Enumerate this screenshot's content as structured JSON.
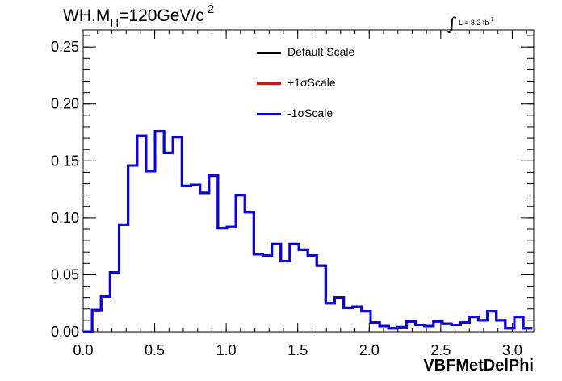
{
  "header": {
    "title_prefix": "WH,M",
    "title_sub": "H",
    "title_value": "=120GeV/c",
    "title_sup": "2",
    "lumi_symbol": "∫",
    "lumi_text": "L = 8.2 fb",
    "lumi_sup": "-1"
  },
  "chart_data": {
    "type": "line",
    "title": "WH,M_H=120GeV/c^2",
    "xlabel": "VBFMetDelPhi",
    "ylabel": "",
    "xlim": [
      0.0,
      3.15
    ],
    "ylim": [
      0.0,
      0.265
    ],
    "xticks": [
      "0.0",
      "0.5",
      "1.0",
      "1.5",
      "2.0",
      "2.5",
      "3.0"
    ],
    "yticks": [
      "0.00",
      "0.05",
      "0.10",
      "0.15",
      "0.20",
      "0.25"
    ],
    "bin_width": 0.0628,
    "x_start": 0.0,
    "legend": [
      "Default Scale",
      "+1σScale",
      "-1σScale"
    ],
    "legend_position": "top-center",
    "series": [
      {
        "name": "Default Scale",
        "color": "#000000",
        "values": [
          0.0,
          0.019,
          0.031,
          0.052,
          0.094,
          0.146,
          0.172,
          0.141,
          0.176,
          0.157,
          0.171,
          0.128,
          0.129,
          0.122,
          0.137,
          0.091,
          0.092,
          0.12,
          0.105,
          0.068,
          0.067,
          0.077,
          0.062,
          0.077,
          0.072,
          0.067,
          0.058,
          0.025,
          0.03,
          0.021,
          0.022,
          0.018,
          0.008,
          0.005,
          0.003,
          0.004,
          0.009,
          0.006,
          0.005,
          0.009,
          0.007,
          0.006,
          0.008,
          0.013,
          0.01,
          0.018,
          0.01,
          0.003,
          0.013,
          0.003
        ]
      },
      {
        "name": "+1σScale",
        "color": "#ff0000",
        "values": [
          0.0,
          0.019,
          0.031,
          0.052,
          0.094,
          0.146,
          0.172,
          0.141,
          0.176,
          0.157,
          0.171,
          0.128,
          0.129,
          0.122,
          0.137,
          0.091,
          0.092,
          0.12,
          0.105,
          0.068,
          0.067,
          0.077,
          0.062,
          0.077,
          0.072,
          0.067,
          0.058,
          0.025,
          0.03,
          0.021,
          0.022,
          0.018,
          0.008,
          0.005,
          0.003,
          0.004,
          0.009,
          0.006,
          0.005,
          0.009,
          0.007,
          0.006,
          0.008,
          0.013,
          0.01,
          0.018,
          0.01,
          0.003,
          0.013,
          0.003
        ]
      },
      {
        "name": "-1σScale",
        "color": "#0000ff",
        "values": [
          0.0,
          0.019,
          0.031,
          0.052,
          0.094,
          0.146,
          0.172,
          0.141,
          0.176,
          0.157,
          0.171,
          0.128,
          0.129,
          0.122,
          0.137,
          0.091,
          0.092,
          0.12,
          0.105,
          0.068,
          0.067,
          0.077,
          0.062,
          0.077,
          0.072,
          0.067,
          0.058,
          0.025,
          0.03,
          0.021,
          0.022,
          0.018,
          0.008,
          0.005,
          0.003,
          0.004,
          0.009,
          0.006,
          0.005,
          0.009,
          0.007,
          0.006,
          0.008,
          0.013,
          0.01,
          0.018,
          0.01,
          0.003,
          0.013,
          0.003
        ]
      }
    ]
  }
}
